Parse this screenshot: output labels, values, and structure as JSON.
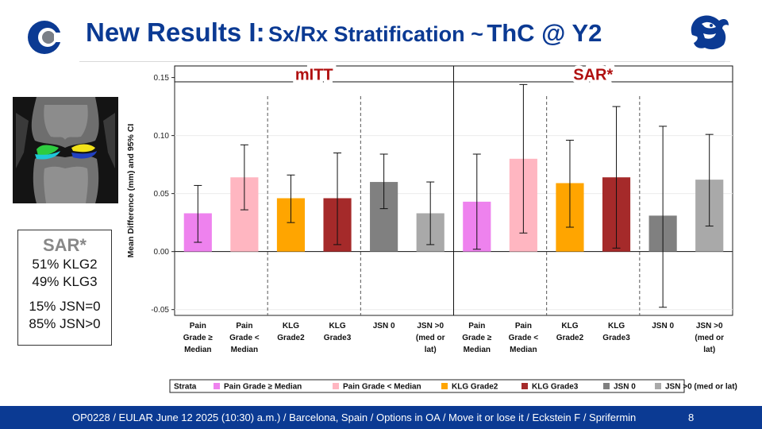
{
  "slide": {
    "title_main": "New Results I:",
    "title_sub": "Sx/Rx Stratification ~",
    "title_tail": "ThC @ Y2",
    "footer_text": "OP0228 / EULAR  June 12 2025 (10:30) a.m.) / Barcelona, Spain / Options in OA / Move it or lose it / Eckstein F / Sprifermin",
    "page_number": "8"
  },
  "sar_box": {
    "title": "SAR*",
    "lines_a": [
      "51% KLG2",
      "49% KLG3"
    ],
    "lines_b": [
      "15% JSN=0",
      "85% JSN>0"
    ]
  },
  "colors": {
    "brand_blue": "#0b3a93",
    "panel_title_red": "#b01010",
    "pain_high": "#ee82ee",
    "pain_low": "#ffb6c1",
    "klg2": "#ffa500",
    "klg3": "#a52a2a",
    "jsn0": "#808080",
    "jsn_gt0": "#a9a9a9"
  },
  "chart_data": {
    "type": "bar",
    "ylabel": "Mean Difference (mm) and 95% CI",
    "ylim": [
      -0.055,
      0.16
    ],
    "yticks": [
      -0.05,
      0.0,
      0.05,
      0.1,
      0.15
    ],
    "ytick_labels": [
      "-0.05",
      "0.00",
      "0.05",
      "0.10",
      "0.15"
    ],
    "panels": [
      {
        "title": "mITT",
        "categories": [
          [
            "Pain",
            "Grade ≥",
            "Median"
          ],
          [
            "Pain",
            "Grade <",
            "Median"
          ],
          [
            "KLG",
            "Grade2"
          ],
          [
            "KLG",
            "Grade3"
          ],
          [
            "JSN 0"
          ],
          [
            "JSN >0",
            "(med or",
            "lat)"
          ]
        ],
        "values": [
          0.033,
          0.064,
          0.046,
          0.046,
          0.06,
          0.033
        ],
        "ci_low": [
          0.008,
          0.036,
          0.025,
          0.006,
          0.037,
          0.006
        ],
        "ci_high": [
          0.057,
          0.092,
          0.066,
          0.085,
          0.084,
          0.06
        ],
        "color_keys": [
          "pain_high",
          "pain_low",
          "klg2",
          "klg3",
          "jsn0",
          "jsn_gt0"
        ],
        "group_separators_after": [
          1,
          3
        ]
      },
      {
        "title": "SAR*",
        "categories": [
          [
            "Pain",
            "Grade ≥",
            "Median"
          ],
          [
            "Pain",
            "Grade <",
            "Median"
          ],
          [
            "KLG",
            "Grade2"
          ],
          [
            "KLG",
            "Grade3"
          ],
          [
            "JSN 0"
          ],
          [
            "JSN >0",
            "(med or",
            "lat)"
          ]
        ],
        "values": [
          0.043,
          0.08,
          0.059,
          0.064,
          0.031,
          0.062
        ],
        "ci_low": [
          0.002,
          0.016,
          0.021,
          0.003,
          -0.048,
          0.022
        ],
        "ci_high": [
          0.084,
          0.144,
          0.096,
          0.125,
          0.108,
          0.101
        ],
        "color_keys": [
          "pain_high",
          "pain_low",
          "klg2",
          "klg3",
          "jsn0",
          "jsn_gt0"
        ],
        "group_separators_after": [
          1,
          3
        ]
      }
    ],
    "legend": {
      "title": "Strata",
      "position": "bottom",
      "entries": [
        {
          "label": "Pain Grade ≥ Median",
          "color_key": "pain_high"
        },
        {
          "label": "Pain Grade < Median",
          "color_key": "pain_low"
        },
        {
          "label": "KLG Grade2",
          "color_key": "klg2"
        },
        {
          "label": "KLG Grade3",
          "color_key": "klg3"
        },
        {
          "label": "JSN 0",
          "color_key": "jsn0"
        },
        {
          "label": "JSN >0 (med or lat)",
          "color_key": "jsn_gt0"
        }
      ]
    }
  }
}
